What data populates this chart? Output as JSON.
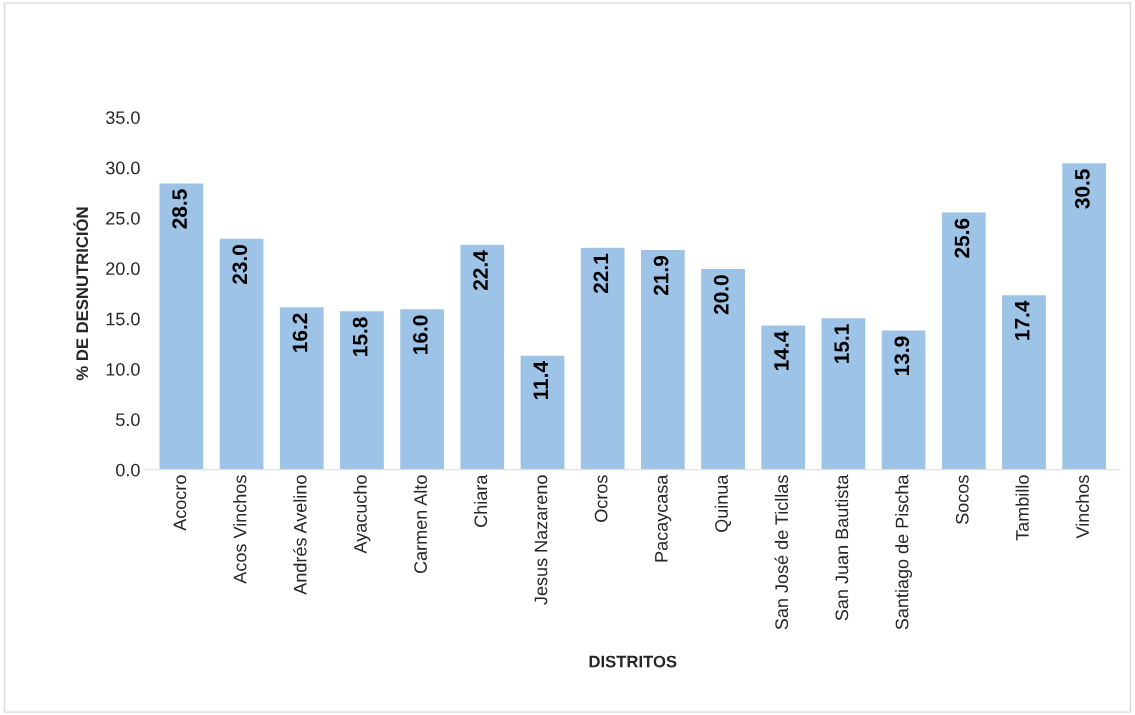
{
  "chart_data": {
    "type": "bar",
    "xlabel": "DISTRITOS",
    "ylabel": "% DE DESNUTRICIÓN",
    "categories": [
      "Acocro",
      "Acos Vinchos",
      "Andrés Avelino",
      "Ayacucho",
      "Carmen Alto",
      "Chiara",
      "Jesus Nazareno",
      "Ocros",
      "Pacaycasa",
      "Quinua",
      "San José de Ticllas",
      "San Juan Bautista",
      "Santiago de Pischa",
      "Socos",
      "Tambillo",
      "Vinchos"
    ],
    "values": [
      28.5,
      23.0,
      16.2,
      15.8,
      16.0,
      22.4,
      11.4,
      22.1,
      21.9,
      20.0,
      14.4,
      15.1,
      13.9,
      25.6,
      17.4,
      30.5
    ],
    "value_labels": [
      "28.5",
      "23.0",
      "16.2",
      "15.8",
      "16.0",
      "22.4",
      "11.4",
      "22.1",
      "21.9",
      "20.0",
      "14.4",
      "15.1",
      "13.9",
      "25.6",
      "17.4",
      "30.5"
    ],
    "color": "#9dc3e6",
    "ylim": [
      0,
      35
    ],
    "yticks": [
      {
        "value": 0,
        "label": "0.0"
      },
      {
        "value": 5,
        "label": "5.0"
      },
      {
        "value": 10,
        "label": "10.0"
      },
      {
        "value": 15,
        "label": "15.0"
      },
      {
        "value": 20,
        "label": "20.0"
      },
      {
        "value": 25,
        "label": "25.0"
      },
      {
        "value": 30,
        "label": "30.0"
      },
      {
        "value": 35,
        "label": "35.0"
      }
    ],
    "grid": false,
    "legend": false
  }
}
